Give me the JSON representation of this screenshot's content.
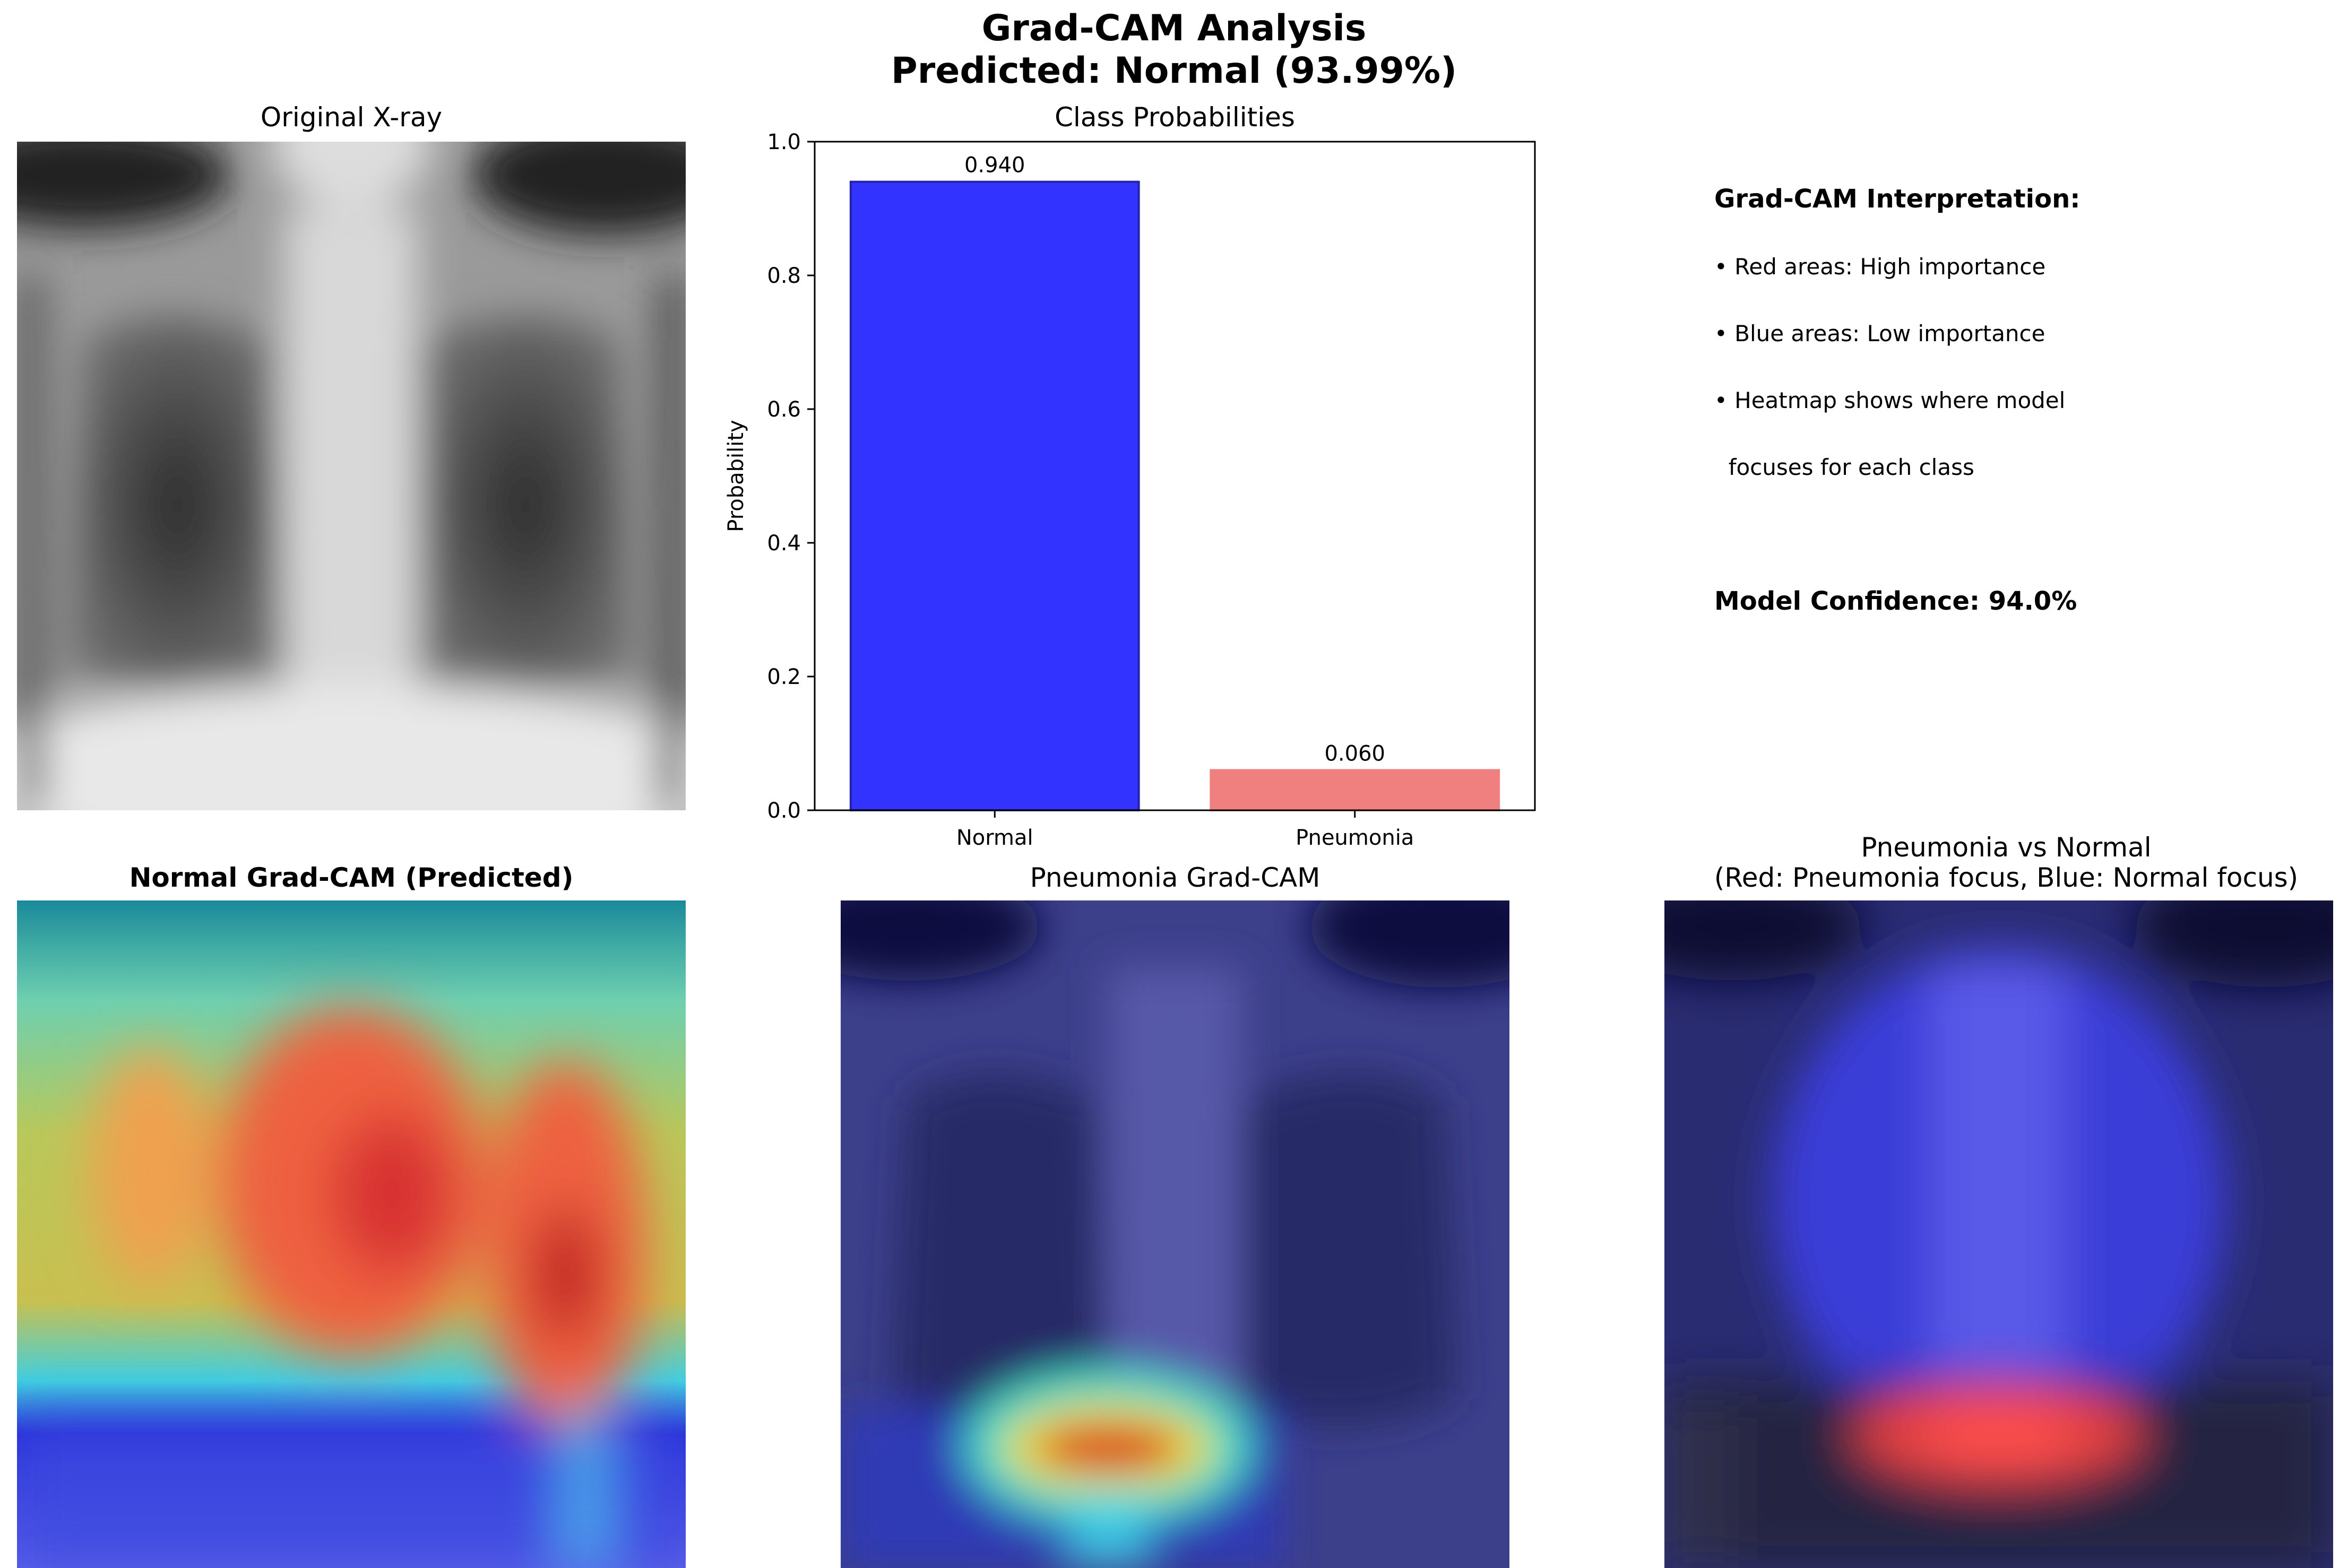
{
  "figure": {
    "title_line1": "Grad-CAM Analysis",
    "title_line2": "Predicted: Normal (93.99%)"
  },
  "panels": {
    "original": {
      "title": "Original X-ray"
    },
    "normal_cam": {
      "title": "Normal Grad-CAM (Predicted)"
    },
    "pneumonia_cam": {
      "title": "Pneumonia Grad-CAM"
    },
    "diff": {
      "title_line1": "Pneumonia vs Normal",
      "title_line2": "(Red: Pneumonia focus, Blue: Normal focus)"
    }
  },
  "interpretation": {
    "heading": "Grad-CAM Interpretation:",
    "lines": [
      "• Red areas: High importance",
      "• Blue areas: Low importance",
      "• Heatmap shows where model",
      "  focuses for each class"
    ],
    "confidence": "Model Confidence: 94.0%"
  },
  "chart_data": {
    "type": "bar",
    "title": "Class Probabilities",
    "xlabel": "",
    "ylabel": "Probability",
    "categories": [
      "Normal",
      "Pneumonia"
    ],
    "values": [
      0.94,
      0.06
    ],
    "value_labels": [
      "0.940",
      "0.060"
    ],
    "colors": [
      "#3333ff",
      "#f08080"
    ],
    "ylim": [
      0,
      1.0
    ],
    "yticks": [
      "0.0",
      "0.2",
      "0.4",
      "0.6",
      "0.8",
      "1.0"
    ],
    "grid": false
  }
}
